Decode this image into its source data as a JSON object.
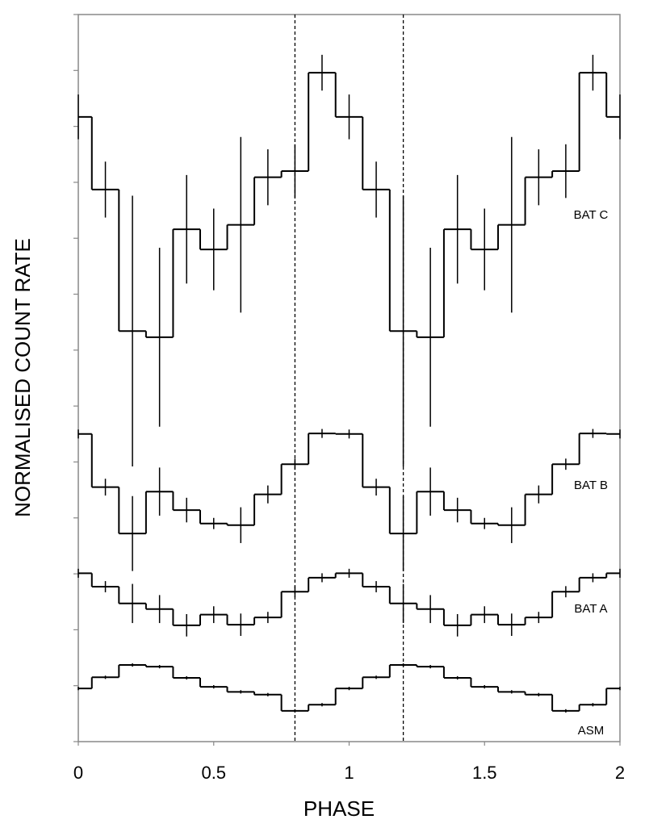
{
  "chart_data": {
    "type": "step",
    "x_label": "PHASE",
    "y_label": "NORMALISED COUNT RATE",
    "x": [
      0,
      0.1,
      0.2,
      0.3,
      0.4,
      0.5,
      0.6,
      0.7,
      0.8,
      0.9,
      1.0,
      1.1,
      1.2,
      1.3,
      1.4,
      1.5,
      1.6,
      1.7,
      1.8,
      1.9,
      2.0
    ],
    "bin_width": 0.1,
    "xlim": [
      0,
      2
    ],
    "xticks": [
      0,
      0.5,
      1,
      1.5,
      2
    ],
    "ylim": [
      0,
      13
    ],
    "yticks": [
      0,
      1,
      2,
      3,
      4,
      5,
      6,
      7,
      8,
      9,
      10,
      11,
      12,
      13
    ],
    "vlines": [
      0.8,
      1.2
    ],
    "series": [
      {
        "name": "BAT C",
        "color": "#000000",
        "values": [
          11.17,
          9.87,
          7.34,
          7.23,
          9.16,
          8.8,
          9.24,
          10.09,
          10.2,
          11.96,
          11.17,
          9.87,
          7.34,
          7.23,
          9.16,
          8.8,
          9.24,
          10.09,
          10.2,
          11.96,
          11.17
        ],
        "errors": [
          0.4,
          0.5,
          2.42,
          1.6,
          0.97,
          0.73,
          1.57,
          0.5,
          0.48,
          0.32,
          0.4,
          0.5,
          2.42,
          1.6,
          0.97,
          0.73,
          1.57,
          0.5,
          0.48,
          0.32,
          0.4
        ]
      },
      {
        "name": "BAT B",
        "color": "#000000",
        "values": [
          5.5,
          4.55,
          3.72,
          4.47,
          4.14,
          3.9,
          3.87,
          4.42,
          4.96,
          5.51,
          5.5,
          4.55,
          3.72,
          4.47,
          4.14,
          3.9,
          3.87,
          4.42,
          4.96,
          5.51,
          5.5
        ],
        "errors": [
          0.08,
          0.15,
          0.67,
          0.43,
          0.22,
          0.1,
          0.32,
          0.16,
          0.1,
          0.08,
          0.08,
          0.15,
          0.67,
          0.43,
          0.22,
          0.1,
          0.32,
          0.16,
          0.1,
          0.08,
          0.08
        ]
      },
      {
        "name": "BAT A",
        "color": "#000000",
        "values": [
          3.01,
          2.77,
          2.47,
          2.37,
          2.08,
          2.27,
          2.09,
          2.22,
          2.68,
          2.93,
          3.01,
          2.77,
          2.47,
          2.37,
          2.08,
          2.27,
          2.09,
          2.22,
          2.68,
          2.93,
          3.01
        ],
        "errors": [
          0.08,
          0.1,
          0.35,
          0.25,
          0.2,
          0.15,
          0.2,
          0.1,
          0.1,
          0.08,
          0.08,
          0.1,
          0.35,
          0.25,
          0.2,
          0.15,
          0.2,
          0.1,
          0.1,
          0.08,
          0.08
        ]
      },
      {
        "name": "ASM",
        "color": "#000000",
        "values": [
          0.95,
          1.15,
          1.37,
          1.34,
          1.14,
          0.98,
          0.89,
          0.84,
          0.55,
          0.66,
          0.95,
          1.15,
          1.37,
          1.34,
          1.14,
          0.98,
          0.89,
          0.84,
          0.55,
          0.66,
          0.95
        ],
        "errors": [
          0.03,
          0.03,
          0.03,
          0.03,
          0.03,
          0.03,
          0.03,
          0.03,
          0.03,
          0.03,
          0.03,
          0.03,
          0.03,
          0.03,
          0.03,
          0.03,
          0.03,
          0.03,
          0.03,
          0.03,
          0.03
        ]
      }
    ]
  }
}
